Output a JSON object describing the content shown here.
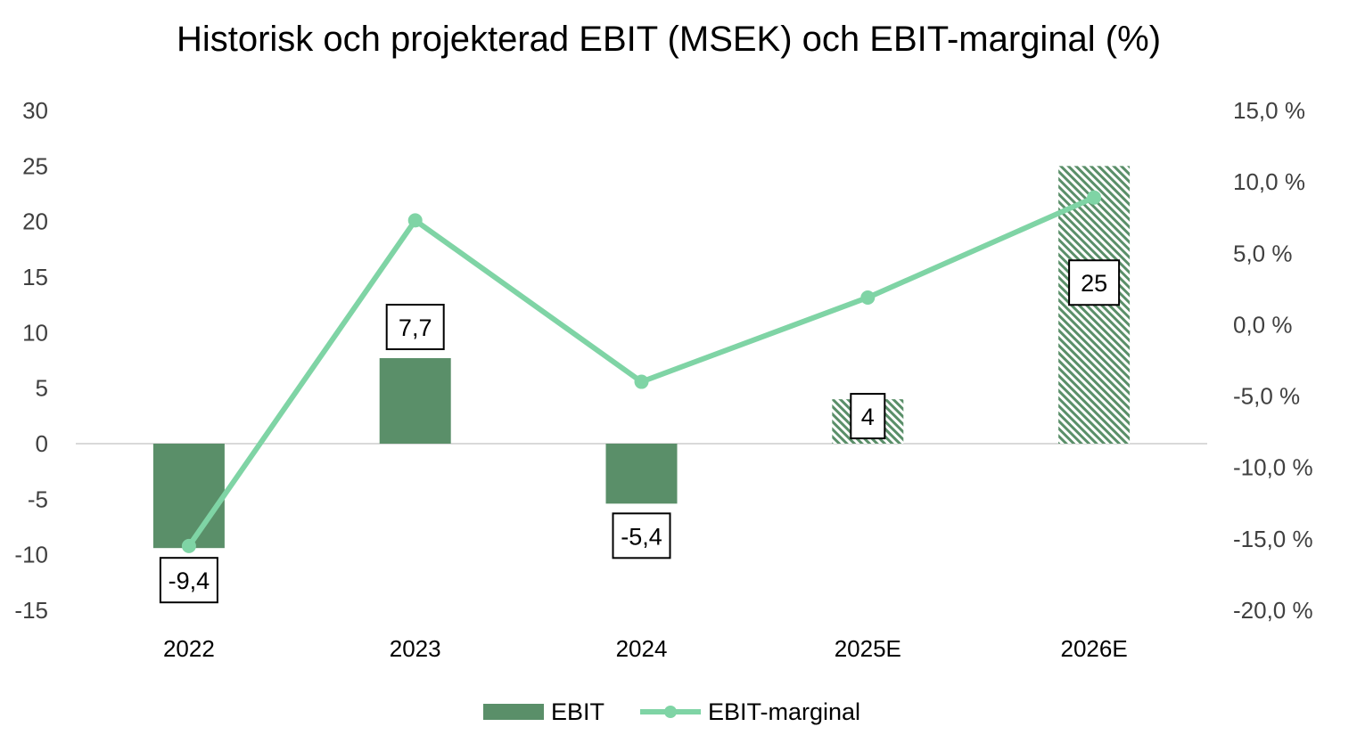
{
  "chart_data": {
    "type": "bar",
    "title": "Historisk och projekterad EBIT (MSEK) och EBIT-marginal (%)",
    "categories": [
      "2022",
      "2023",
      "2024",
      "2025E",
      "2026E"
    ],
    "projected": [
      false,
      false,
      false,
      true,
      true
    ],
    "series": [
      {
        "name": "EBIT",
        "type": "bar",
        "axis": "left",
        "values": [
          -9.4,
          7.7,
          -5.4,
          4,
          25
        ],
        "labels": [
          "-9,4",
          "7,7",
          "-5,4",
          "4",
          "25"
        ],
        "color": "#5a8f69"
      },
      {
        "name": "EBIT-marginal",
        "type": "line",
        "axis": "right",
        "values": [
          -15.5,
          7.3,
          -4.0,
          1.9,
          8.9
        ],
        "color": "#7fd4a5"
      }
    ],
    "y_left": {
      "min": -15,
      "max": 30,
      "step": 5,
      "ticks": [
        "-15",
        "-10",
        "-5",
        "0",
        "5",
        "10",
        "15",
        "20",
        "25",
        "30"
      ]
    },
    "y_right": {
      "min": -20,
      "max": 15,
      "step": 5,
      "ticks": [
        "-20,0 %",
        "-15,0 %",
        "-10,0 %",
        "-5,0 %",
        "0,0 %",
        "5,0 %",
        "10,0 %",
        "15,0 %"
      ]
    },
    "grid": false,
    "legend_position": "bottom"
  }
}
